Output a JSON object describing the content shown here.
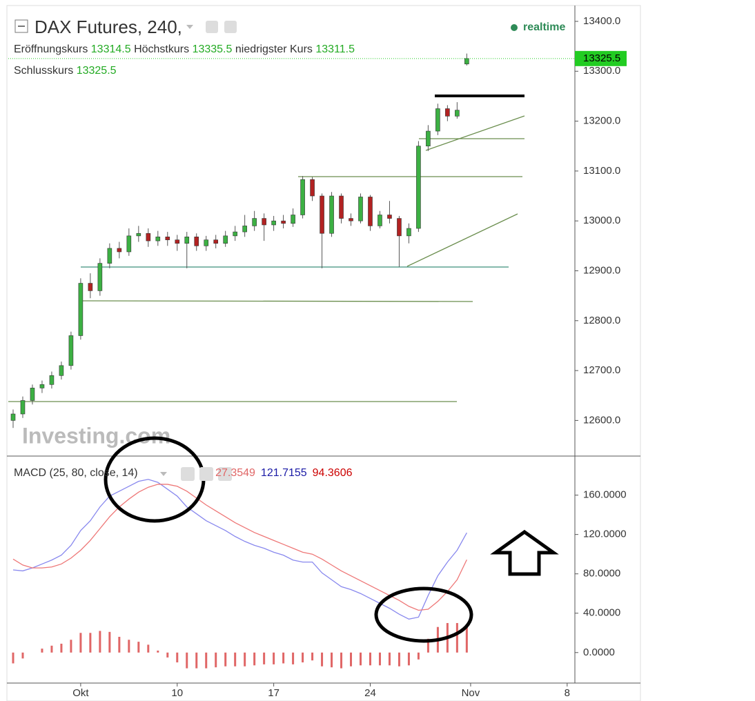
{
  "chart_data": [
    {
      "type": "candlestick",
      "title": "DAX Futures, 240,",
      "status": "realtime",
      "labels": {
        "open": "Eröffnungskurs",
        "high": "Höchstkurs",
        "low": "niedrigster Kurs",
        "close": "Schlusskurs"
      },
      "watermark": "Investing.com",
      "x": [
        -3.5,
        -3,
        -2.5,
        -2,
        -1.5,
        -1,
        -0.5,
        0,
        0.5,
        1,
        1.5,
        2,
        2.5,
        3,
        3.5,
        4,
        4.5,
        5,
        5.5,
        6,
        6.5,
        7,
        7.5,
        8,
        8.5,
        9,
        9.5,
        10,
        10.5,
        11,
        11.5,
        12,
        12.5,
        13,
        13.5,
        14,
        14.5,
        15,
        15.5,
        16,
        16.5,
        17,
        17.5,
        18,
        18.5,
        19,
        19.5,
        20
      ],
      "open": [
        12600,
        12613,
        12640,
        12665,
        12672,
        12690,
        12710,
        12770,
        12875,
        12860,
        12915,
        12945,
        12938,
        12970,
        12975,
        12960,
        12968,
        12962,
        12955,
        12968,
        12950,
        12962,
        12955,
        12970,
        12978,
        12990,
        13005,
        12992,
        13000,
        12995,
        13012,
        13083,
        13050,
        12975,
        13050,
        13005,
        13000,
        13048,
        12990,
        13012,
        13005,
        12970,
        12985,
        13150,
        13180,
        13225,
        13210,
        13314.5
      ],
      "high": [
        12622,
        12648,
        12672,
        12680,
        12698,
        12718,
        12778,
        12885,
        12895,
        12925,
        12955,
        12958,
        12985,
        12990,
        12985,
        12980,
        12978,
        12972,
        12978,
        12975,
        12970,
        12972,
        12980,
        12990,
        13012,
        13020,
        13015,
        13010,
        13012,
        13025,
        13090,
        13088,
        13055,
        13058,
        13055,
        13015,
        13055,
        13052,
        13020,
        13040,
        13010,
        12995,
        13160,
        13192,
        13235,
        13232,
        13238,
        13335.5
      ],
      "low": [
        12585,
        12605,
        12632,
        12655,
        12664,
        12682,
        12702,
        12762,
        12845,
        12850,
        12905,
        12925,
        12930,
        12958,
        12948,
        12950,
        12950,
        12940,
        12905,
        12940,
        12940,
        12945,
        12948,
        12960,
        12968,
        12980,
        12960,
        12980,
        12985,
        12988,
        13005,
        13040,
        12905,
        12968,
        12995,
        12990,
        12995,
        12980,
        12985,
        12995,
        12908,
        12955,
        12978,
        13140,
        13172,
        13200,
        13205,
        13311.5
      ],
      "close": [
        12613,
        12640,
        12665,
        12672,
        12690,
        12710,
        12770,
        12875,
        12860,
        12915,
        12945,
        12938,
        12970,
        12975,
        12960,
        12968,
        12962,
        12955,
        12968,
        12950,
        12962,
        12955,
        12970,
        12978,
        12990,
        13005,
        12992,
        13000,
        12995,
        13012,
        13083,
        13050,
        12975,
        13050,
        13005,
        13000,
        13048,
        12990,
        13012,
        13005,
        12970,
        12985,
        13150,
        13180,
        13225,
        13210,
        13222,
        13325.5
      ],
      "up_color": "#3cb043",
      "down_color": "#b22222",
      "last_color": "#22cc22",
      "xlim": [
        -3.75,
        25.6
      ],
      "xticks": [
        {
          "value": 0,
          "label": "Okt"
        },
        {
          "value": 5,
          "label": "10"
        },
        {
          "value": 10,
          "label": "17"
        },
        {
          "value": 15,
          "label": "24"
        },
        {
          "value": 20.2,
          "label": "Nov"
        },
        {
          "value": 25.2,
          "label": "8"
        }
      ],
      "ylim": [
        12530,
        13429
      ],
      "yticks": [
        {
          "value": 12600,
          "label": "12600.0"
        },
        {
          "value": 12700,
          "label": "12700.0"
        },
        {
          "value": 12800,
          "label": "12800.0"
        },
        {
          "value": 12900,
          "label": "12900.0"
        },
        {
          "value": 13000,
          "label": "13000.0"
        },
        {
          "value": 13100,
          "label": "13100.0"
        },
        {
          "value": 13200,
          "label": "13200.0"
        },
        {
          "value": 13300,
          "label": "13300.0"
        },
        {
          "value": 13400,
          "label": "13400.0"
        }
      ]
    },
    {
      "type": "macd",
      "title": "MACD (25, 80, close, 14)",
      "series": [
        {
          "style": "histogram",
          "color": "#e06666",
          "values": [
            -11,
            -6,
            0,
            4,
            7,
            9,
            13,
            20,
            20,
            22,
            21,
            16,
            13,
            11,
            8,
            2,
            -5,
            -10,
            -16,
            -16,
            -16,
            -15,
            -14,
            -14,
            -14,
            -13,
            -12,
            -12,
            -11,
            -12,
            -10,
            -8,
            -14,
            -15,
            -16,
            -14,
            -13,
            -13,
            -13,
            -13,
            -14,
            -13,
            -7,
            14,
            26,
            30,
            30,
            27.3549
          ]
        },
        {
          "style": "line",
          "color": "#1a1aa6",
          "line_color": "#8888ee",
          "values": [
            84,
            83,
            86,
            90,
            94,
            99,
            109,
            124,
            134,
            148,
            159,
            164,
            169,
            174,
            176,
            173,
            166,
            159,
            148,
            141,
            134,
            129,
            124,
            118,
            113,
            109,
            106,
            102,
            99,
            94,
            92,
            92,
            81,
            74,
            67,
            64,
            60,
            55,
            50,
            45,
            39,
            34,
            36,
            58,
            78,
            92,
            104,
            121.7155
          ]
        },
        {
          "style": "line",
          "color": "#cc0000",
          "line_color": "#ee7777",
          "values": [
            95,
            89,
            86,
            86,
            87,
            90,
            96,
            104,
            114,
            126,
            138,
            148,
            156,
            163,
            168,
            171,
            171,
            169,
            164,
            157,
            150,
            144,
            138,
            132,
            127,
            122,
            118,
            114,
            110,
            106,
            102,
            100,
            95,
            89,
            83,
            78,
            73,
            68,
            63,
            58,
            53,
            47,
            43,
            44,
            52,
            62,
            74,
            94.3606
          ]
        }
      ],
      "ylim": [
        -31,
        199
      ],
      "yticks": [
        {
          "value": 0,
          "label": "0.0000"
        },
        {
          "value": 40,
          "label": "40.0000"
        },
        {
          "value": 80,
          "label": "80.0000"
        },
        {
          "value": 120,
          "label": "120.0000"
        },
        {
          "value": 160,
          "label": "160.0000"
        }
      ]
    }
  ]
}
